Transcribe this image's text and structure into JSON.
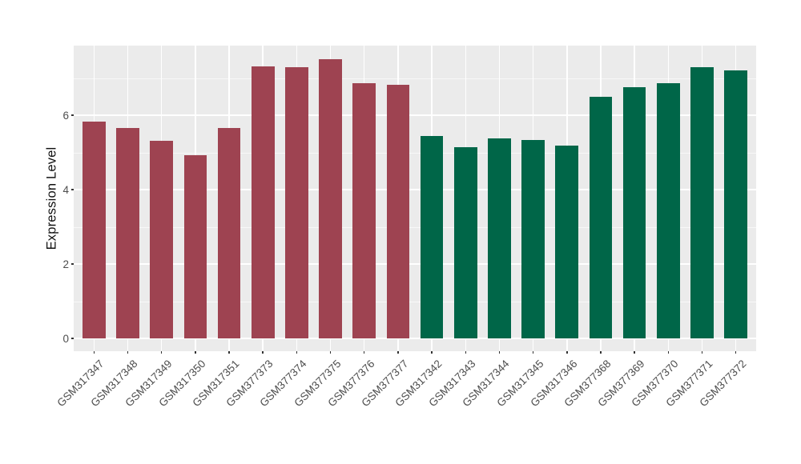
{
  "chart_data": {
    "type": "bar",
    "title": "",
    "xlabel": "",
    "ylabel": "Expression Level",
    "categories": [
      "GSM317347",
      "GSM317348",
      "GSM317349",
      "GSM317350",
      "GSM317351",
      "GSM377373",
      "GSM377374",
      "GSM377375",
      "GSM377376",
      "GSM377377",
      "GSM317342",
      "GSM317343",
      "GSM317344",
      "GSM317345",
      "GSM317346",
      "GSM377368",
      "GSM377369",
      "GSM377370",
      "GSM377371",
      "GSM377372"
    ],
    "values": [
      5.83,
      5.66,
      5.31,
      4.92,
      5.66,
      7.31,
      7.28,
      7.51,
      6.87,
      6.82,
      5.44,
      5.15,
      5.38,
      5.33,
      5.18,
      6.49,
      6.75,
      6.85,
      7.28,
      7.2
    ],
    "bar_groups": [
      "red",
      "red",
      "red",
      "red",
      "red",
      "red",
      "red",
      "red",
      "red",
      "red",
      "green",
      "green",
      "green",
      "green",
      "green",
      "green",
      "green",
      "green",
      "green",
      "green"
    ],
    "group_colors": {
      "red": "#9E4351",
      "green": "#006648"
    },
    "y_ticks": [
      0,
      2,
      4,
      6
    ],
    "y_tick_labels": [
      "0",
      "2",
      "4",
      "6"
    ],
    "y_minor_ticks": [
      1,
      3,
      5,
      7
    ],
    "ylim": [
      -0.38,
      7.89
    ],
    "grid": "on",
    "legend": "none",
    "panel_bg": "#EBEBEB",
    "grid_major_color": "#FFFFFF",
    "axis_text_color": "#4D4D4D"
  }
}
